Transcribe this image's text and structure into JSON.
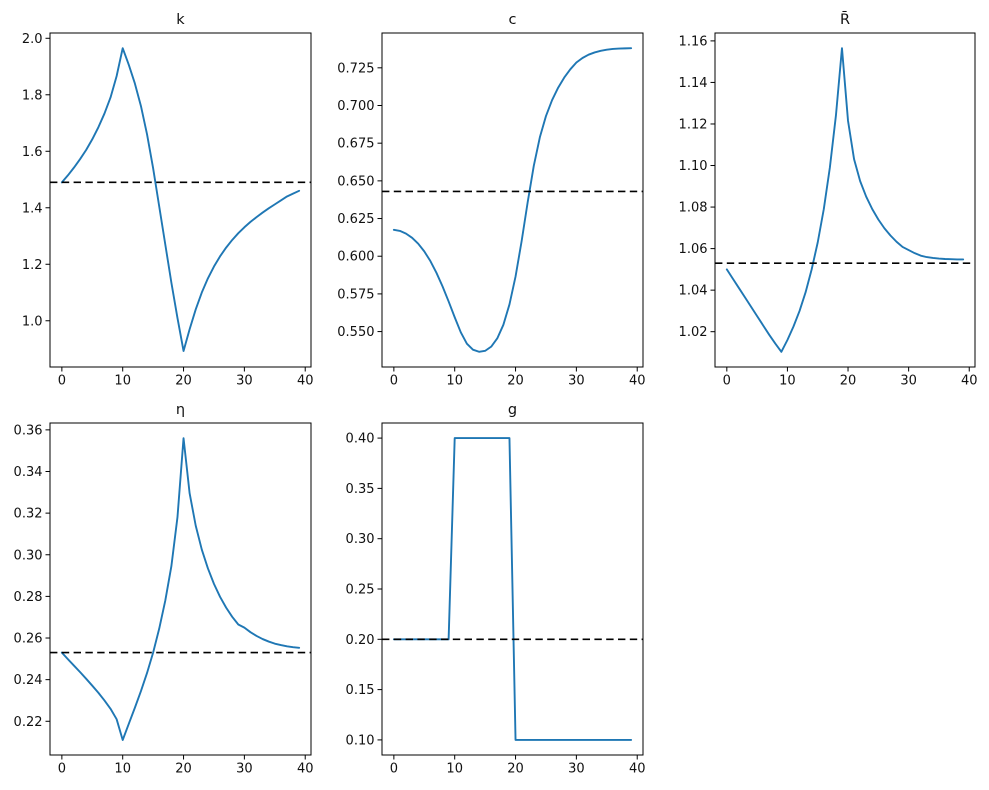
{
  "figure": {
    "background": "#ffffff",
    "line_color": "#1f77b4",
    "steady_state_color": "#000000",
    "spine_color": "#000000",
    "xlim": [
      -1.95,
      40.95
    ],
    "x_values": [
      0,
      1,
      2,
      3,
      4,
      5,
      6,
      7,
      8,
      9,
      10,
      11,
      12,
      13,
      14,
      15,
      16,
      17,
      18,
      19,
      20,
      21,
      22,
      23,
      24,
      25,
      26,
      27,
      28,
      29,
      30,
      31,
      32,
      33,
      34,
      35,
      36,
      37,
      38,
      39
    ],
    "x_tick_values": [
      0,
      10,
      20,
      30,
      40
    ],
    "x_tick_labels": [
      "0",
      "10",
      "20",
      "30",
      "40"
    ]
  },
  "chart_data": [
    {
      "type": "line",
      "title": "k",
      "title_style": "normal",
      "ylim": [
        0.8363,
        2.0187
      ],
      "ytick_values": [
        1.0,
        1.2,
        1.4,
        1.6,
        1.8,
        2.0
      ],
      "ytick_labels": [
        "1.0",
        "1.2",
        "1.4",
        "1.6",
        "1.8",
        "2.0"
      ],
      "steady_state": 1.49,
      "values": [
        1.49,
        1.515,
        1.5425,
        1.5725,
        1.605,
        1.6425,
        1.685,
        1.7335,
        1.7905,
        1.866,
        1.965,
        1.906,
        1.84,
        1.76,
        1.66,
        1.54,
        1.405,
        1.27,
        1.135,
        1.01,
        0.893,
        0.97,
        1.04,
        1.1,
        1.15,
        1.192,
        1.228,
        1.259,
        1.286,
        1.31,
        1.331,
        1.35,
        1.367,
        1.383,
        1.398,
        1.412,
        1.426,
        1.44,
        1.45,
        1.46
      ]
    },
    {
      "type": "line",
      "title": "c",
      "title_style": "normal",
      "ylim": [
        0.5265,
        0.7481
      ],
      "ytick_values": [
        0.55,
        0.575,
        0.6,
        0.625,
        0.65,
        0.675,
        0.7,
        0.725
      ],
      "ytick_labels": [
        "0.550",
        "0.575",
        "0.600",
        "0.625",
        "0.650",
        "0.675",
        "0.700",
        "0.725"
      ],
      "steady_state": 0.643,
      "values": [
        0.6175,
        0.6168,
        0.615,
        0.6122,
        0.6083,
        0.6032,
        0.5968,
        0.589,
        0.58,
        0.57,
        0.5595,
        0.5495,
        0.542,
        0.538,
        0.5366,
        0.5372,
        0.54,
        0.5455,
        0.5545,
        0.568,
        0.5865,
        0.61,
        0.636,
        0.66,
        0.679,
        0.693,
        0.7035,
        0.7118,
        0.7185,
        0.724,
        0.7285,
        0.7315,
        0.7337,
        0.7352,
        0.7363,
        0.737,
        0.7375,
        0.7378,
        0.7379,
        0.738
      ]
    },
    {
      "type": "line",
      "title": "R̄",
      "title_style": "italic",
      "ylim": [
        1.003,
        1.1638
      ],
      "ytick_values": [
        1.02,
        1.04,
        1.06,
        1.08,
        1.1,
        1.12,
        1.14,
        1.16
      ],
      "ytick_labels": [
        "1.02",
        "1.04",
        "1.06",
        "1.08",
        "1.10",
        "1.12",
        "1.14",
        "1.16"
      ],
      "steady_state": 1.053,
      "values": [
        1.05,
        1.0455,
        1.041,
        1.0365,
        1.032,
        1.0275,
        1.023,
        1.0185,
        1.0143,
        1.0103,
        1.016,
        1.0225,
        1.03,
        1.039,
        1.05,
        1.063,
        1.079,
        1.099,
        1.124,
        1.1565,
        1.1215,
        1.103,
        1.0925,
        1.085,
        1.079,
        1.074,
        1.0698,
        1.0663,
        1.0633,
        1.0608,
        1.0593,
        1.0578,
        1.0566,
        1.0559,
        1.0555,
        1.0552,
        1.055,
        1.0549,
        1.0548,
        1.0548
      ]
    },
    {
      "type": "line",
      "title": "η",
      "title_style": "italic",
      "ylim": [
        0.2038,
        0.3633
      ],
      "ytick_values": [
        0.22,
        0.24,
        0.26,
        0.28,
        0.3,
        0.32,
        0.34,
        0.36
      ],
      "ytick_labels": [
        "0.22",
        "0.24",
        "0.26",
        "0.28",
        "0.30",
        "0.32",
        "0.34",
        "0.36"
      ],
      "steady_state": 0.253,
      "values": [
        0.253,
        0.2498,
        0.2467,
        0.2436,
        0.2404,
        0.2371,
        0.2337,
        0.23,
        0.226,
        0.221,
        0.211,
        0.2188,
        0.2265,
        0.2345,
        0.2432,
        0.253,
        0.2645,
        0.278,
        0.2945,
        0.318,
        0.356,
        0.3295,
        0.314,
        0.3025,
        0.2935,
        0.286,
        0.2798,
        0.2746,
        0.2702,
        0.2665,
        0.265,
        0.2628,
        0.261,
        0.2595,
        0.2583,
        0.2573,
        0.2566,
        0.256,
        0.2556,
        0.2553
      ]
    },
    {
      "type": "line",
      "title": "g",
      "title_style": "italic",
      "ylim": [
        0.085,
        0.415
      ],
      "ytick_values": [
        0.1,
        0.15,
        0.2,
        0.25,
        0.3,
        0.35,
        0.4
      ],
      "ytick_labels": [
        "0.10",
        "0.15",
        "0.20",
        "0.25",
        "0.30",
        "0.35",
        "0.40"
      ],
      "steady_state": 0.2,
      "values": [
        0.2,
        0.2,
        0.2,
        0.2,
        0.2,
        0.2,
        0.2,
        0.2,
        0.2,
        0.2,
        0.4,
        0.4,
        0.4,
        0.4,
        0.4,
        0.4,
        0.4,
        0.4,
        0.4,
        0.4,
        0.1,
        0.1,
        0.1,
        0.1,
        0.1,
        0.1,
        0.1,
        0.1,
        0.1,
        0.1,
        0.1,
        0.1,
        0.1,
        0.1,
        0.1,
        0.1,
        0.1,
        0.1,
        0.1,
        0.1
      ]
    }
  ]
}
